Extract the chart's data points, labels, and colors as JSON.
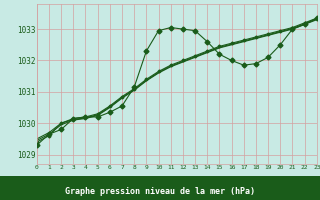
{
  "xlabel": "Graphe pression niveau de la mer (hPa)",
  "bg_color": "#c8eae4",
  "grid_color": "#d4a0a0",
  "line_color": "#1a5c1a",
  "label_bg_color": "#1a5c1a",
  "label_text_color": "#ffffff",
  "marker": "D",
  "xlim": [
    0,
    23
  ],
  "ylim": [
    1028.7,
    1033.8
  ],
  "yticks": [
    1029,
    1030,
    1031,
    1032,
    1033
  ],
  "xticks": [
    0,
    1,
    2,
    3,
    4,
    5,
    6,
    7,
    8,
    9,
    10,
    11,
    12,
    13,
    14,
    15,
    16,
    17,
    18,
    19,
    20,
    21,
    22,
    23
  ],
  "hours": [
    0,
    1,
    2,
    3,
    4,
    5,
    6,
    7,
    8,
    9,
    10,
    11,
    12,
    13,
    14,
    15,
    16,
    17,
    18,
    19,
    20,
    21,
    22,
    23
  ],
  "line1": [
    1029.3,
    1029.65,
    1029.8,
    1030.15,
    1030.2,
    1030.2,
    1030.35,
    1030.55,
    1031.15,
    1032.3,
    1032.95,
    1033.05,
    1033.0,
    1032.95,
    1032.6,
    1032.2,
    1032.0,
    1031.85,
    1031.9,
    1032.1,
    1032.5,
    1033.0,
    1033.15,
    1033.35
  ],
  "line2": [
    1029.4,
    1029.6,
    1030.0,
    1030.15,
    1030.2,
    1030.3,
    1030.55,
    1030.85,
    1031.1,
    1031.4,
    1031.65,
    1031.85,
    1032.0,
    1032.15,
    1032.3,
    1032.45,
    1032.55,
    1032.65,
    1032.75,
    1032.85,
    1032.95,
    1033.05,
    1033.2,
    1033.35
  ],
  "line3": [
    1029.45,
    1029.65,
    1029.95,
    1030.1,
    1030.15,
    1030.25,
    1030.5,
    1030.8,
    1031.05,
    1031.35,
    1031.6,
    1031.8,
    1031.95,
    1032.1,
    1032.25,
    1032.4,
    1032.5,
    1032.6,
    1032.7,
    1032.8,
    1032.9,
    1033.0,
    1033.15,
    1033.3
  ],
  "line4": [
    1029.5,
    1029.7,
    1030.0,
    1030.12,
    1030.17,
    1030.27,
    1030.52,
    1030.82,
    1031.07,
    1031.37,
    1031.62,
    1031.82,
    1031.97,
    1032.12,
    1032.27,
    1032.42,
    1032.52,
    1032.62,
    1032.72,
    1032.82,
    1032.92,
    1033.02,
    1033.17,
    1033.32
  ]
}
